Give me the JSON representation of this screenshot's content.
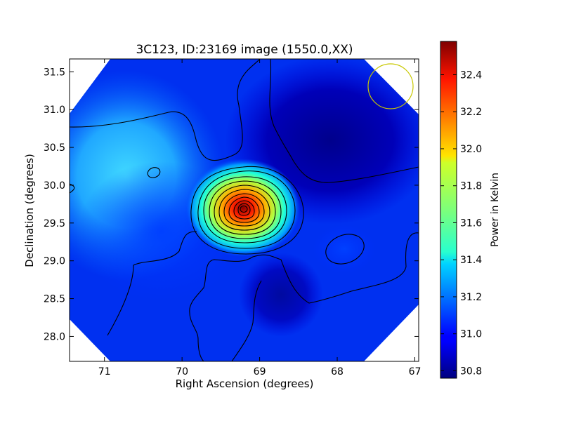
{
  "chart_data": {
    "type": "heatmap",
    "title": "3C123, ID:23169 image (1550.0,XX)",
    "xlabel": "Right Ascension (degrees)",
    "ylabel": "Declination (degrees)",
    "x_range": [
      71.45,
      66.95
    ],
    "y_range": [
      27.67,
      31.67
    ],
    "x_ticks": [
      "71",
      "70",
      "69",
      "68",
      "67"
    ],
    "x_tick_values": [
      71,
      70,
      69,
      68,
      67
    ],
    "y_ticks": [
      "28.0",
      "28.5",
      "29.0",
      "29.5",
      "30.0",
      "30.5",
      "31.0",
      "31.5"
    ],
    "y_tick_values": [
      28.0,
      28.5,
      29.0,
      29.5,
      30.0,
      30.5,
      31.0,
      31.5
    ],
    "colorbar": {
      "label": "Power in Kelvin",
      "range": [
        30.76,
        32.58
      ],
      "ticks": [
        "30.8",
        "31.0",
        "31.2",
        "31.4",
        "31.6",
        "31.8",
        "32.0",
        "32.2",
        "32.4"
      ],
      "tick_values": [
        30.8,
        31.0,
        31.2,
        31.4,
        31.6,
        31.8,
        32.0,
        32.2,
        32.4
      ],
      "colormap": "jet"
    },
    "peak": {
      "ra": 69.2,
      "dec": 29.67,
      "value": 32.55
    },
    "beam_circle": {
      "ra": 67.3,
      "dec": 31.31,
      "color": "#c8c800"
    },
    "grid": false
  }
}
